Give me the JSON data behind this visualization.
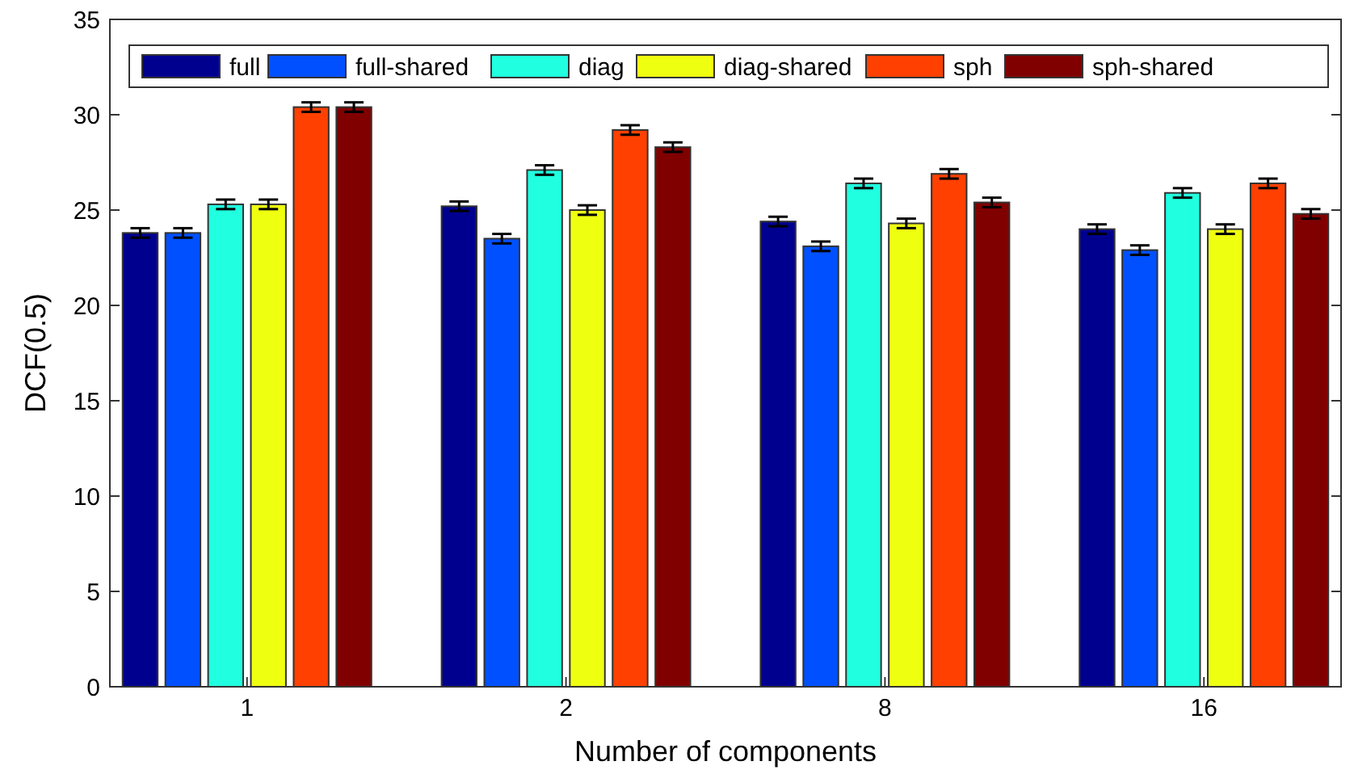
{
  "chart_data": {
    "type": "bar",
    "xlabel": "Number of components",
    "ylabel": "DCF(0.5)",
    "categories": [
      "1",
      "2",
      "8",
      "16"
    ],
    "ylim": [
      0,
      35
    ],
    "yticks": [
      0,
      5,
      10,
      15,
      20,
      25,
      30,
      35
    ],
    "legend": "top",
    "grid": false,
    "series": [
      {
        "name": "full",
        "color": "#00008f",
        "values": [
          23.8,
          25.2,
          24.4,
          24.0
        ],
        "errors": [
          0.25,
          0.25,
          0.25,
          0.25
        ]
      },
      {
        "name": "full-shared",
        "color": "#0050ff",
        "values": [
          23.8,
          23.5,
          23.1,
          22.9
        ],
        "errors": [
          0.25,
          0.25,
          0.25,
          0.25
        ]
      },
      {
        "name": "diag",
        "color": "#20ffdf",
        "values": [
          25.3,
          27.1,
          26.4,
          25.9
        ],
        "errors": [
          0.25,
          0.25,
          0.25,
          0.25
        ]
      },
      {
        "name": "diag-shared",
        "color": "#efff10",
        "values": [
          25.3,
          25.0,
          24.3,
          24.0
        ],
        "errors": [
          0.25,
          0.25,
          0.25,
          0.25
        ]
      },
      {
        "name": "sph",
        "color": "#ff4000",
        "values": [
          30.4,
          29.2,
          26.9,
          26.4
        ],
        "errors": [
          0.25,
          0.25,
          0.25,
          0.25
        ]
      },
      {
        "name": "sph-shared",
        "color": "#800000",
        "values": [
          30.4,
          28.3,
          25.4,
          24.8
        ],
        "errors": [
          0.25,
          0.25,
          0.25,
          0.25
        ]
      }
    ]
  }
}
